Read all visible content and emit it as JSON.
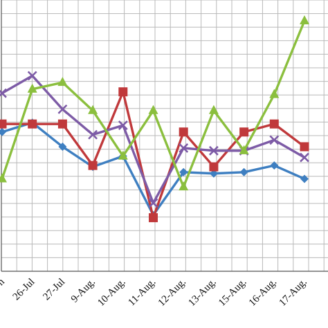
{
  "chart_data": {
    "type": "line",
    "title": "",
    "xlabel": "",
    "ylabel": "",
    "categories": [
      "",
      "26-Jul",
      "27-Jul",
      "9-Aug.",
      "10-Aug.",
      "11-Aug.",
      "12-Aug.",
      "13-Aug.",
      "15-Aug.",
      "16-Aug.",
      "17-Aug."
    ],
    "visible_first_label": "n",
    "ylim": [
      0,
      20
    ],
    "grid": true,
    "legend": "none",
    "series": [
      {
        "key": "blue",
        "color": "#3E7FC1",
        "marker": "diamond",
        "values": [
          10.4,
          11.1,
          9.3,
          7.8,
          8.6,
          4.2,
          7.4,
          7.3,
          7.4,
          7.9,
          6.9
        ]
      },
      {
        "key": "red",
        "color": "#C0393B",
        "marker": "square",
        "values": [
          11.0,
          11.0,
          11.0,
          7.9,
          13.4,
          4.0,
          10.4,
          7.8,
          10.4,
          11.0,
          9.3
        ]
      },
      {
        "key": "purple",
        "color": "#7D5BA6",
        "marker": "x",
        "values": [
          13.3,
          14.6,
          12.1,
          10.2,
          10.9,
          5.1,
          9.2,
          9.0,
          9.0,
          9.8,
          8.5
        ]
      },
      {
        "key": "green",
        "color": "#8BBF3E",
        "marker": "triangle",
        "values": [
          6.9,
          13.6,
          14.1,
          12.0,
          8.6,
          12.0,
          6.3,
          12.0,
          9.0,
          13.2,
          18.7
        ]
      }
    ]
  }
}
